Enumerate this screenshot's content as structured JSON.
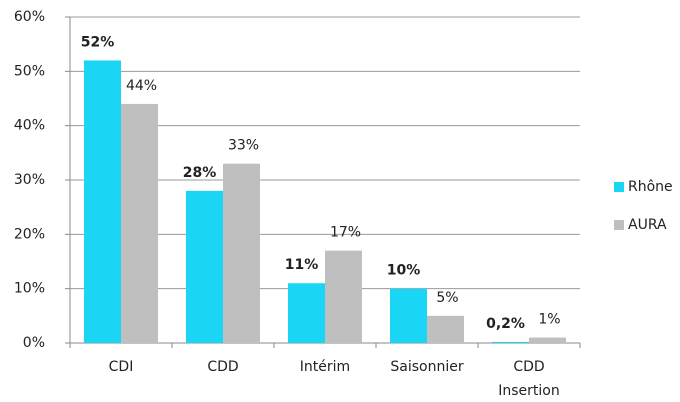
{
  "chart_data": {
    "type": "bar",
    "categories": [
      "CDI",
      "CDD",
      "Intérim",
      "Saisonnier",
      "CDD Insertion"
    ],
    "series": [
      {
        "name": "Rhône",
        "color": "#1ad6f4",
        "values": [
          52,
          28,
          11,
          10,
          0.2
        ],
        "value_labels": [
          "52%",
          "28%",
          "11%",
          "10%",
          "0,2%"
        ]
      },
      {
        "name": "AURA",
        "color": "#bfbfbf",
        "values": [
          44,
          33,
          17,
          5,
          1
        ],
        "value_labels": [
          "44%",
          "33%",
          "17%",
          "5%",
          "1%"
        ]
      }
    ],
    "ylim": [
      0,
      60
    ],
    "yticks": [
      {
        "value": 0,
        "label": "0%"
      },
      {
        "value": 10,
        "label": "10%"
      },
      {
        "value": 20,
        "label": "20%"
      },
      {
        "value": 30,
        "label": "30%"
      },
      {
        "value": 40,
        "label": "40%"
      },
      {
        "value": 50,
        "label": "50%"
      },
      {
        "value": 60,
        "label": "60%"
      }
    ],
    "grid": true,
    "legend": "right"
  }
}
